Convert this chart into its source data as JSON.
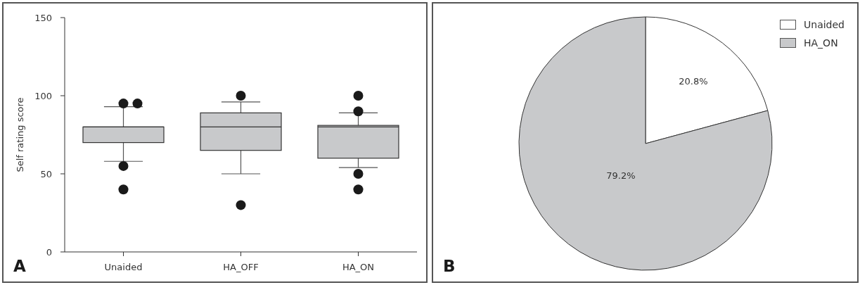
{
  "chart_data": [
    {
      "type": "box",
      "categories": [
        "Unaided",
        "HA_OFF",
        "HA_ON"
      ],
      "color": "#c8c9cb",
      "ylabel": "Self rating score",
      "ylim": [
        0,
        150
      ],
      "yticks": [
        0,
        50,
        100,
        150
      ],
      "boxes": [
        {
          "low": 58,
          "q1": 70,
          "median": 80,
          "q3": 80,
          "high": 93,
          "outliers": [
            95,
            95,
            55,
            40
          ]
        },
        {
          "low": 50,
          "q1": 65,
          "median": 80,
          "q3": 89,
          "high": 96,
          "outliers": [
            100,
            30
          ]
        },
        {
          "low": 54,
          "q1": 60,
          "median": 80,
          "q3": 81,
          "high": 89,
          "outliers": [
            100,
            90,
            50,
            40
          ]
        }
      ],
      "annotations": [
        "A"
      ]
    },
    {
      "type": "pie",
      "categories": [
        "Unaided",
        "HA_ON"
      ],
      "values": [
        20.8,
        79.2
      ],
      "colors": [
        "#ffffff",
        "#c8c9cb"
      ],
      "value_labels": [
        "20.8%",
        "79.2%"
      ],
      "legend": "top right",
      "annotations": [
        "B"
      ]
    }
  ]
}
